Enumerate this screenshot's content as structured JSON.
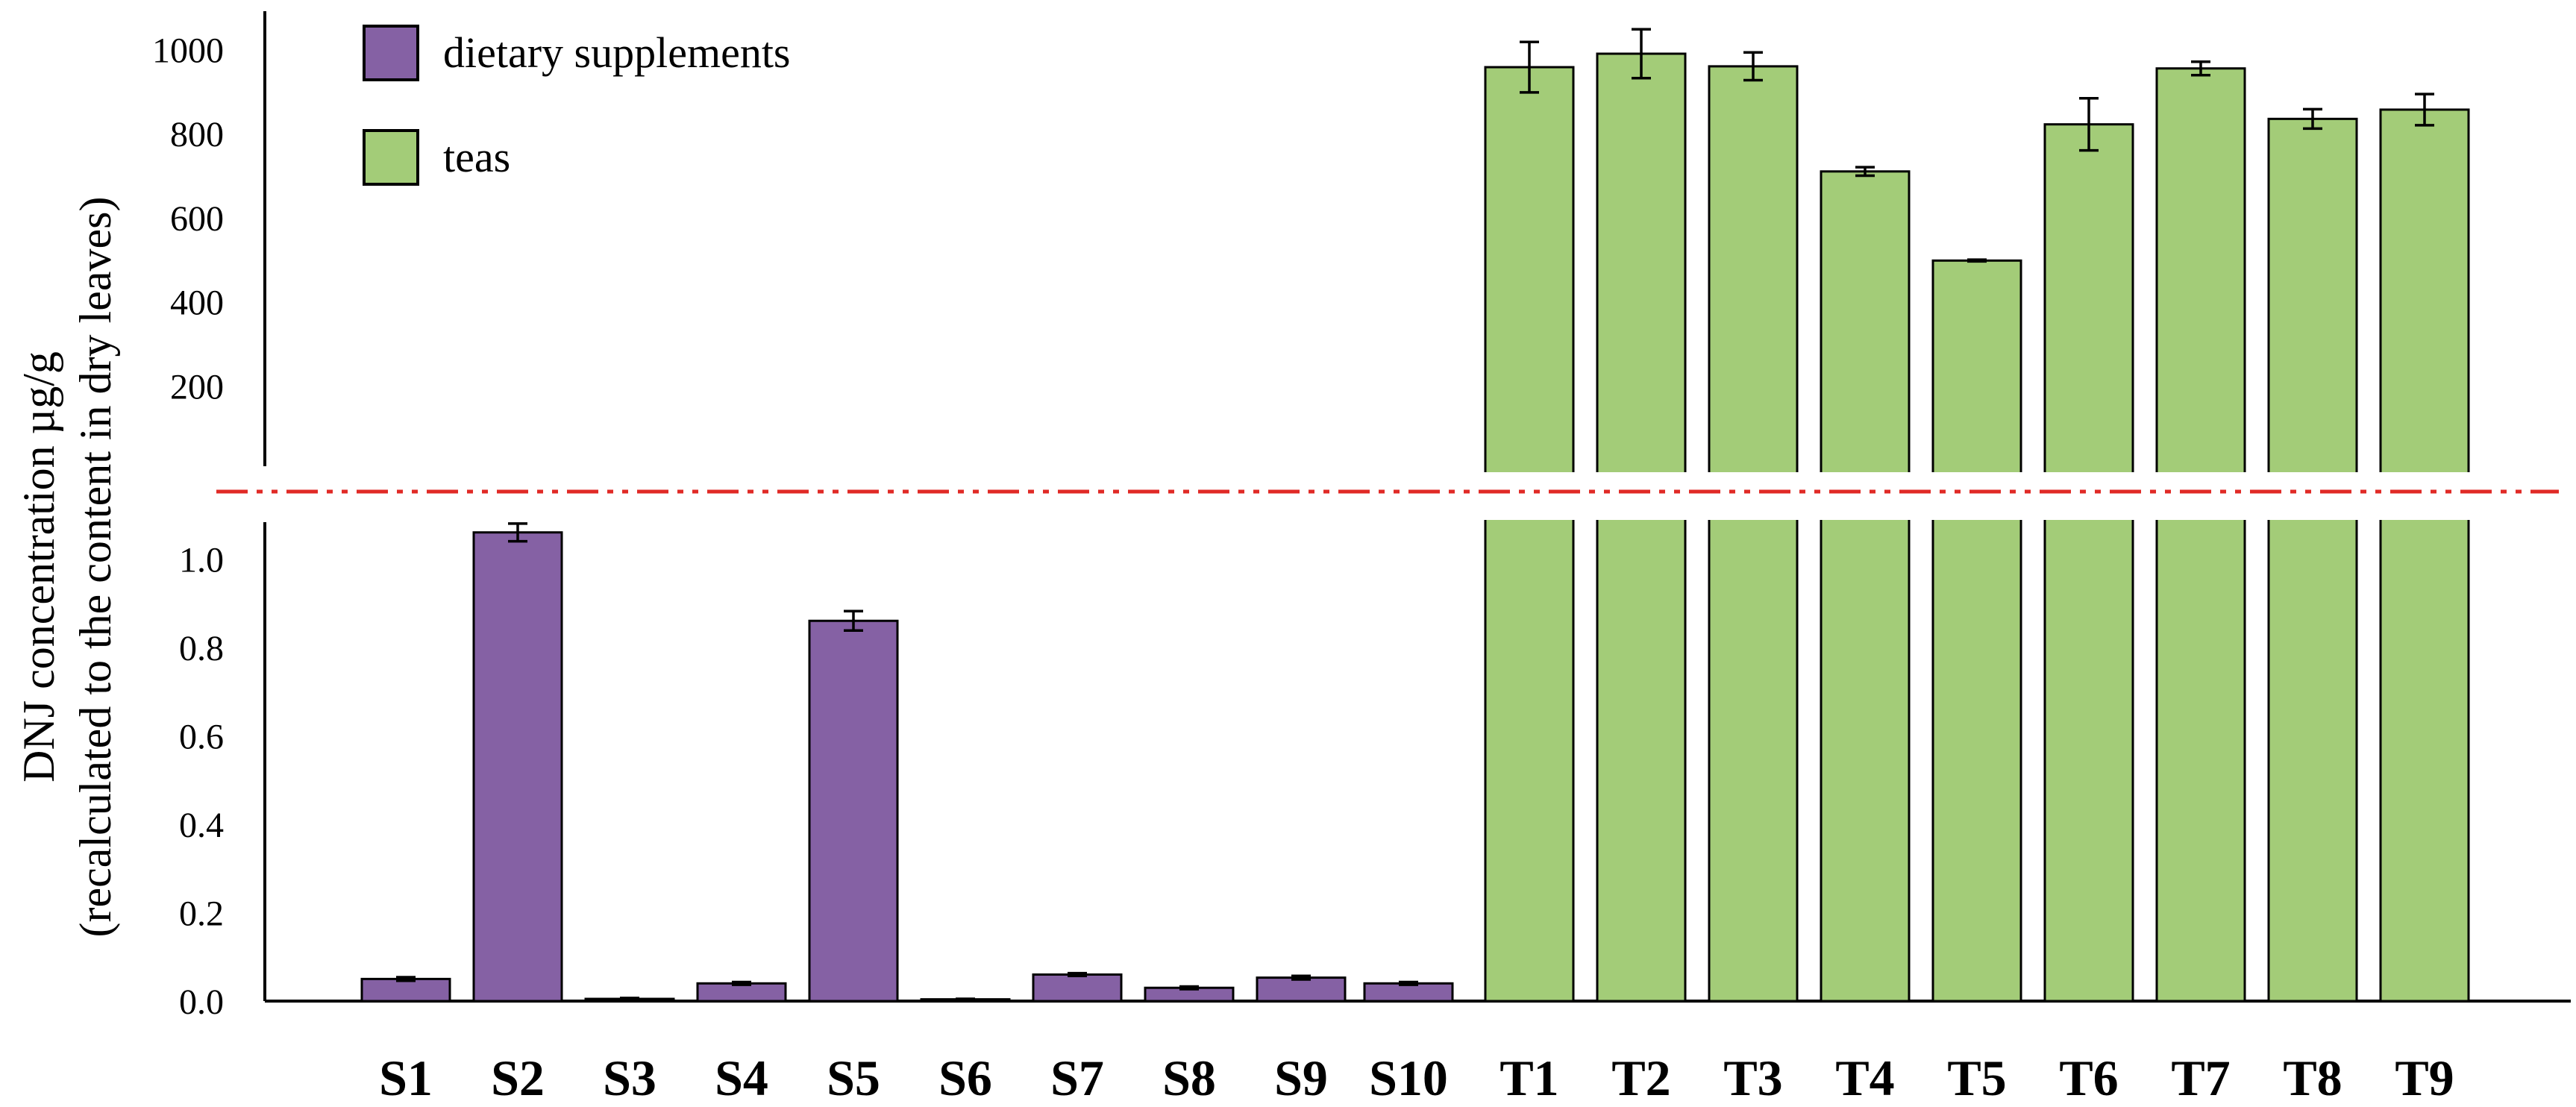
{
  "chart_data": {
    "type": "bar",
    "ylabel_line1": "DNJ concentration µg/g",
    "ylabel_line2": "(recalculated to the content in dry leaves)",
    "axis_break": true,
    "upper_axis": {
      "ylim": [
        0,
        1100
      ],
      "ticks": [
        200,
        400,
        600,
        800,
        1000
      ]
    },
    "lower_axis": {
      "ylim": [
        0,
        1.1
      ],
      "ticks": [
        "0.0",
        "0.2",
        "0.4",
        "0.6",
        "0.8",
        "1.0"
      ]
    },
    "legend": [
      {
        "label": "dietary supplements",
        "color": "#8561A4"
      },
      {
        "label": "teas",
        "color": "#A3CC78"
      }
    ],
    "series": [
      {
        "name": "dietary supplements",
        "color": "#8561A4",
        "axis": "lower",
        "categories": [
          "S1",
          "S2",
          "S3",
          "S4",
          "S5",
          "S6",
          "S7",
          "S8",
          "S9",
          "S10"
        ],
        "values": [
          0.05,
          1.06,
          0.005,
          0.04,
          0.86,
          0.004,
          0.06,
          0.03,
          0.053,
          0.04
        ],
        "errors": [
          0.004,
          0.02,
          0.002,
          0.003,
          0.022,
          0.001,
          0.003,
          0.003,
          0.004,
          0.003
        ]
      },
      {
        "name": "teas",
        "color": "#A3CC78",
        "axis": "upper",
        "categories": [
          "T1",
          "T2",
          "T3",
          "T4",
          "T5",
          "T6",
          "T7",
          "T8",
          "T9"
        ],
        "values": [
          958,
          990,
          960,
          710,
          498,
          822,
          955,
          835,
          857
        ],
        "errors": [
          60,
          58,
          33,
          10,
          2,
          62,
          16,
          23,
          37
        ]
      }
    ]
  }
}
